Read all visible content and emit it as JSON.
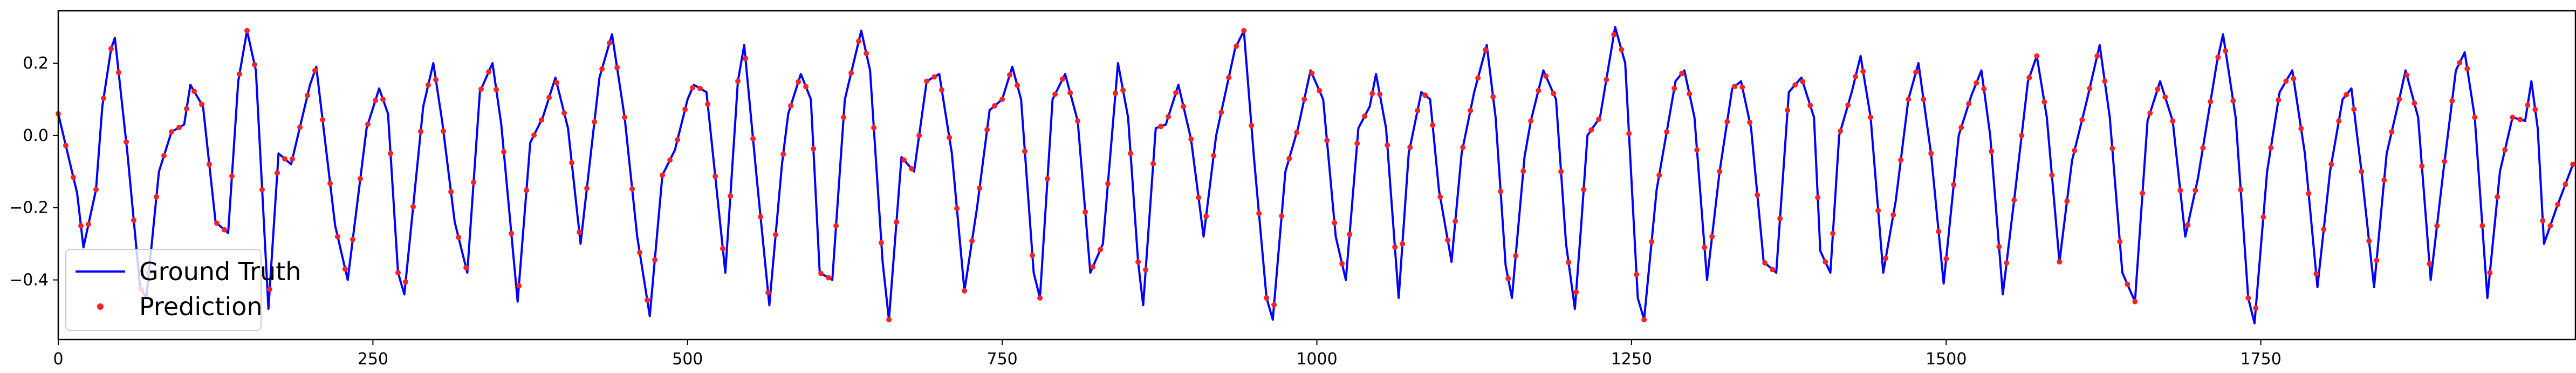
{
  "chart_data": {
    "type": "line",
    "title": "",
    "xlabel": "",
    "ylabel": "",
    "xlim": [
      0,
      2000
    ],
    "ylim": [
      -0.565,
      0.345
    ],
    "x_ticks": [
      0,
      250,
      500,
      750,
      1000,
      1250,
      1500,
      1750
    ],
    "y_ticks": [
      0.2,
      0.0,
      -0.2,
      -0.4
    ],
    "y_tick_labels": [
      "0.2",
      "0.0",
      "−0.2",
      "−0.4"
    ],
    "grid": false,
    "legend_position": "lower-left",
    "sample_step": 6,
    "series": [
      {
        "name": "Ground Truth",
        "kind": "line",
        "color": "#0000ff",
        "points": [
          [
            0,
            0.06
          ],
          [
            15,
            -0.16
          ],
          [
            20,
            -0.31
          ],
          [
            30,
            -0.15
          ],
          [
            35,
            0.08
          ],
          [
            42,
            0.24
          ],
          [
            45,
            0.27
          ],
          [
            55,
            -0.05
          ],
          [
            65,
            -0.42
          ],
          [
            70,
            -0.45
          ],
          [
            80,
            -0.1
          ],
          [
            90,
            0.01
          ],
          [
            100,
            0.03
          ],
          [
            105,
            0.14
          ],
          [
            115,
            0.08
          ],
          [
            125,
            -0.24
          ],
          [
            135,
            -0.27
          ],
          [
            143,
            0.15
          ],
          [
            150,
            0.29
          ],
          [
            157,
            0.18
          ],
          [
            167,
            -0.48
          ],
          [
            175,
            -0.05
          ],
          [
            185,
            -0.08
          ],
          [
            200,
            0.14
          ],
          [
            205,
            0.19
          ],
          [
            220,
            -0.25
          ],
          [
            230,
            -0.4
          ],
          [
            245,
            0.02
          ],
          [
            255,
            0.13
          ],
          [
            262,
            0.06
          ],
          [
            270,
            -0.38
          ],
          [
            275,
            -0.44
          ],
          [
            290,
            0.08
          ],
          [
            298,
            0.2
          ],
          [
            305,
            0.04
          ],
          [
            315,
            -0.24
          ],
          [
            325,
            -0.38
          ],
          [
            335,
            0.12
          ],
          [
            345,
            0.2
          ],
          [
            352,
            0.03
          ],
          [
            365,
            -0.46
          ],
          [
            375,
            -0.02
          ],
          [
            385,
            0.05
          ],
          [
            395,
            0.16
          ],
          [
            405,
            0.02
          ],
          [
            415,
            -0.3
          ],
          [
            430,
            0.16
          ],
          [
            440,
            0.28
          ],
          [
            450,
            0.05
          ],
          [
            460,
            -0.28
          ],
          [
            470,
            -0.5
          ],
          [
            480,
            -0.11
          ],
          [
            490,
            -0.04
          ],
          [
            500,
            0.1
          ],
          [
            505,
            0.14
          ],
          [
            515,
            0.12
          ],
          [
            530,
            -0.38
          ],
          [
            540,
            0.15
          ],
          [
            545,
            0.25
          ],
          [
            555,
            -0.12
          ],
          [
            565,
            -0.47
          ],
          [
            575,
            -0.08
          ],
          [
            580,
            0.06
          ],
          [
            590,
            0.17
          ],
          [
            598,
            0.1
          ],
          [
            605,
            -0.38
          ],
          [
            615,
            -0.4
          ],
          [
            625,
            0.1
          ],
          [
            638,
            0.29
          ],
          [
            645,
            0.18
          ],
          [
            655,
            -0.35
          ],
          [
            660,
            -0.51
          ],
          [
            670,
            -0.06
          ],
          [
            680,
            -0.1
          ],
          [
            690,
            0.15
          ],
          [
            700,
            0.17
          ],
          [
            710,
            -0.05
          ],
          [
            720,
            -0.43
          ],
          [
            730,
            -0.2
          ],
          [
            740,
            0.07
          ],
          [
            750,
            0.1
          ],
          [
            758,
            0.19
          ],
          [
            765,
            0.1
          ],
          [
            775,
            -0.38
          ],
          [
            780,
            -0.45
          ],
          [
            790,
            0.1
          ],
          [
            800,
            0.17
          ],
          [
            810,
            0.04
          ],
          [
            820,
            -0.38
          ],
          [
            830,
            -0.3
          ],
          [
            842,
            0.2
          ],
          [
            850,
            0.05
          ],
          [
            858,
            -0.35
          ],
          [
            862,
            -0.47
          ],
          [
            872,
            0.02
          ],
          [
            880,
            0.03
          ],
          [
            890,
            0.14
          ],
          [
            900,
            -0.01
          ],
          [
            910,
            -0.28
          ],
          [
            920,
            0.0
          ],
          [
            935,
            0.24
          ],
          [
            942,
            0.29
          ],
          [
            950,
            -0.06
          ],
          [
            960,
            -0.45
          ],
          [
            965,
            -0.51
          ],
          [
            975,
            -0.1
          ],
          [
            985,
            0.02
          ],
          [
            995,
            0.18
          ],
          [
            1005,
            0.1
          ],
          [
            1015,
            -0.28
          ],
          [
            1023,
            -0.4
          ],
          [
            1033,
            0.02
          ],
          [
            1042,
            0.08
          ],
          [
            1047,
            0.17
          ],
          [
            1055,
            0.02
          ],
          [
            1065,
            -0.45
          ],
          [
            1073,
            -0.05
          ],
          [
            1083,
            0.12
          ],
          [
            1090,
            0.1
          ],
          [
            1097,
            -0.15
          ],
          [
            1107,
            -0.35
          ],
          [
            1115,
            -0.05
          ],
          [
            1125,
            0.12
          ],
          [
            1135,
            0.25
          ],
          [
            1142,
            0.05
          ],
          [
            1150,
            -0.36
          ],
          [
            1155,
            -0.45
          ],
          [
            1165,
            -0.06
          ],
          [
            1170,
            0.04
          ],
          [
            1180,
            0.18
          ],
          [
            1190,
            0.1
          ],
          [
            1198,
            -0.3
          ],
          [
            1205,
            -0.48
          ],
          [
            1210,
            -0.25
          ],
          [
            1215,
            0.0
          ],
          [
            1225,
            0.05
          ],
          [
            1237,
            0.3
          ],
          [
            1245,
            0.2
          ],
          [
            1255,
            -0.45
          ],
          [
            1260,
            -0.51
          ],
          [
            1270,
            -0.15
          ],
          [
            1285,
            0.15
          ],
          [
            1292,
            0.18
          ],
          [
            1300,
            0.05
          ],
          [
            1310,
            -0.4
          ],
          [
            1320,
            -0.1
          ],
          [
            1330,
            0.13
          ],
          [
            1337,
            0.15
          ],
          [
            1345,
            0.02
          ],
          [
            1355,
            -0.35
          ],
          [
            1365,
            -0.38
          ],
          [
            1375,
            0.12
          ],
          [
            1385,
            0.16
          ],
          [
            1395,
            0.05
          ],
          [
            1400,
            -0.32
          ],
          [
            1408,
            -0.38
          ],
          [
            1415,
            0.0
          ],
          [
            1425,
            0.12
          ],
          [
            1432,
            0.22
          ],
          [
            1440,
            0.05
          ],
          [
            1450,
            -0.38
          ],
          [
            1460,
            -0.18
          ],
          [
            1470,
            0.1
          ],
          [
            1478,
            0.2
          ],
          [
            1488,
            -0.05
          ],
          [
            1498,
            -0.41
          ],
          [
            1510,
            0.0
          ],
          [
            1520,
            0.11
          ],
          [
            1528,
            0.18
          ],
          [
            1535,
            0.0
          ],
          [
            1545,
            -0.44
          ],
          [
            1555,
            -0.15
          ],
          [
            1565,
            0.15
          ],
          [
            1572,
            0.22
          ],
          [
            1580,
            0.05
          ],
          [
            1590,
            -0.35
          ],
          [
            1600,
            -0.07
          ],
          [
            1612,
            0.1
          ],
          [
            1622,
            0.25
          ],
          [
            1630,
            0.05
          ],
          [
            1640,
            -0.38
          ],
          [
            1650,
            -0.46
          ],
          [
            1660,
            0.04
          ],
          [
            1670,
            0.15
          ],
          [
            1680,
            0.04
          ],
          [
            1690,
            -0.28
          ],
          [
            1700,
            -0.12
          ],
          [
            1715,
            0.2
          ],
          [
            1720,
            0.28
          ],
          [
            1730,
            0.05
          ],
          [
            1740,
            -0.45
          ],
          [
            1745,
            -0.52
          ],
          [
            1755,
            -0.1
          ],
          [
            1765,
            0.12
          ],
          [
            1775,
            0.18
          ],
          [
            1785,
            -0.05
          ],
          [
            1795,
            -0.42
          ],
          [
            1805,
            -0.1
          ],
          [
            1815,
            0.1
          ],
          [
            1822,
            0.13
          ],
          [
            1830,
            -0.1
          ],
          [
            1840,
            -0.42
          ],
          [
            1850,
            -0.05
          ],
          [
            1860,
            0.1
          ],
          [
            1865,
            0.18
          ],
          [
            1875,
            0.05
          ],
          [
            1885,
            -0.4
          ],
          [
            1895,
            -0.1
          ],
          [
            1905,
            0.18
          ],
          [
            1912,
            0.23
          ],
          [
            1920,
            0.05
          ],
          [
            1930,
            -0.45
          ],
          [
            1940,
            -0.1
          ],
          [
            1950,
            0.05
          ],
          [
            1960,
            0.04
          ],
          [
            1965,
            0.15
          ],
          [
            1970,
            0.02
          ],
          [
            1975,
            -0.3
          ],
          [
            1985,
            -0.2
          ],
          [
            1998,
            -0.08
          ]
        ]
      },
      {
        "name": "Prediction",
        "kind": "scatter",
        "color": "#ff2020"
      }
    ]
  },
  "legend": {
    "items": [
      {
        "label": "Ground Truth",
        "kind": "line",
        "color": "#0000ff"
      },
      {
        "label": "Prediction",
        "kind": "marker",
        "color": "#ff2020"
      }
    ]
  }
}
